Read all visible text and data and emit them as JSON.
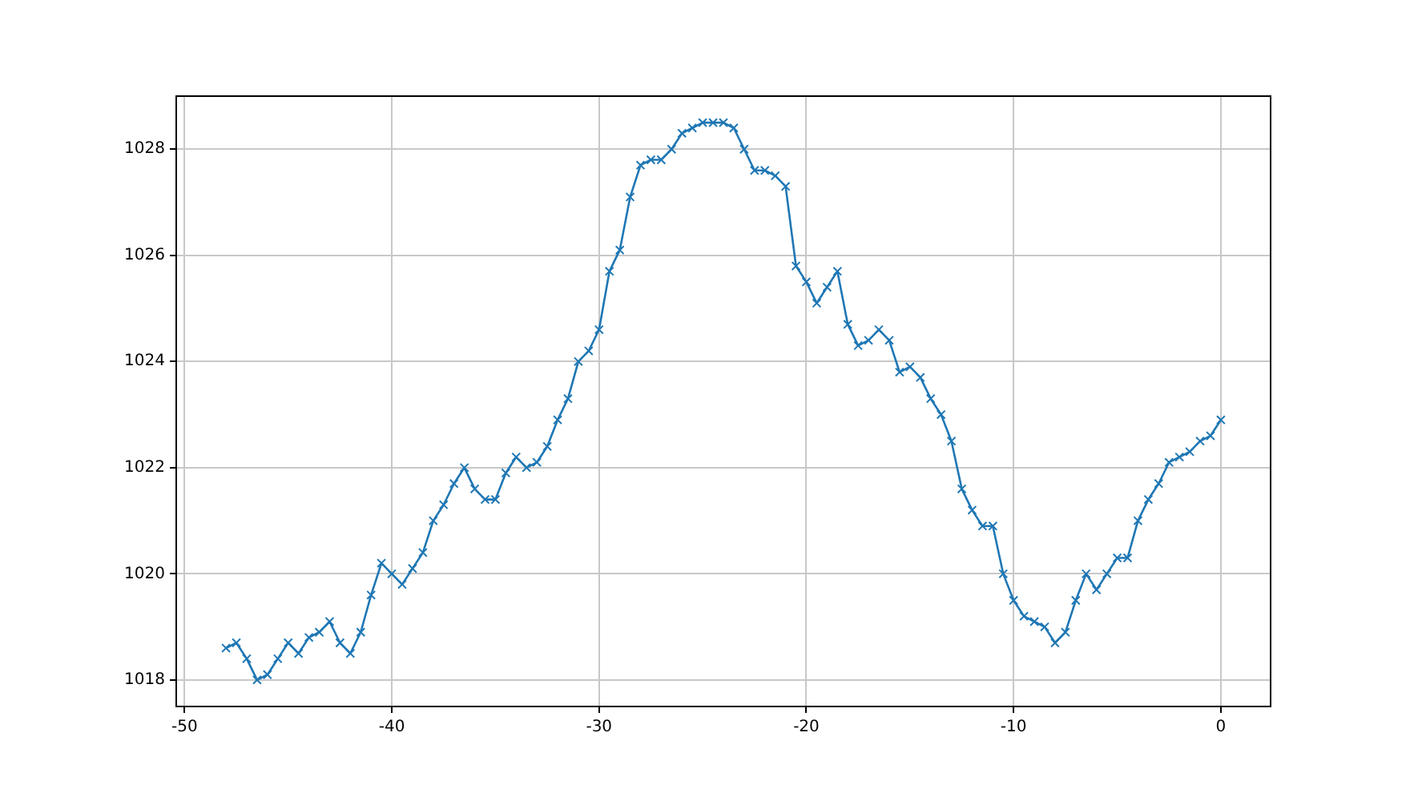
{
  "chart_data": {
    "type": "line",
    "x": [
      -48,
      -47.5,
      -47,
      -46.5,
      -46,
      -45.5,
      -45,
      -44.5,
      -44,
      -43.5,
      -43,
      -42.5,
      -42,
      -41.5,
      -41,
      -40.5,
      -40,
      -39.5,
      -39,
      -38.5,
      -38,
      -37.5,
      -37,
      -36.5,
      -36,
      -35.5,
      -35,
      -34.5,
      -34,
      -33.5,
      -33,
      -32.5,
      -32,
      -31.5,
      -31,
      -30.5,
      -30,
      -29.5,
      -29,
      -28.5,
      -28,
      -27.5,
      -27,
      -26.5,
      -26,
      -25.5,
      -25,
      -24.5,
      -24,
      -23.5,
      -23,
      -22.5,
      -22,
      -21.5,
      -21,
      -20.5,
      -20,
      -19.5,
      -19,
      -18.5,
      -18,
      -17.5,
      -17,
      -16.5,
      -16,
      -15.5,
      -15,
      -14.5,
      -14,
      -13.5,
      -13,
      -12.5,
      -12,
      -11.5,
      -11,
      -10.5,
      -10,
      -9.5,
      -9,
      -8.5,
      -8,
      -7.5,
      -7,
      -6.5,
      -6,
      -5.5,
      -5,
      -4.5,
      -4,
      -3.5,
      -3,
      -2.5,
      -2,
      -1.5,
      -1,
      -0.5,
      0
    ],
    "series": [
      {
        "color": "#1f77b4",
        "values": [
          1018.6,
          1018.7,
          1018.4,
          1018.0,
          1018.1,
          1018.4,
          1018.7,
          1018.5,
          1018.8,
          1018.9,
          1019.1,
          1018.7,
          1018.5,
          1018.9,
          1019.6,
          1020.2,
          1020.0,
          1019.8,
          1020.1,
          1020.4,
          1021.0,
          1021.3,
          1021.7,
          1022.0,
          1021.6,
          1021.4,
          1021.4,
          1021.9,
          1022.2,
          1022.0,
          1022.1,
          1022.4,
          1022.9,
          1023.3,
          1024.0,
          1024.2,
          1024.6,
          1025.7,
          1026.1,
          1027.1,
          1027.7,
          1027.8,
          1027.8,
          1028.0,
          1028.3,
          1028.4,
          1028.5,
          1028.5,
          1028.5,
          1028.4,
          1028.0,
          1027.6,
          1027.6,
          1027.5,
          1027.3,
          1025.8,
          1025.5,
          1025.1,
          1025.4,
          1025.7,
          1024.7,
          1024.3,
          1024.4,
          1024.6,
          1024.4,
          1023.8,
          1023.9,
          1023.7,
          1023.3,
          1023.0,
          1022.5,
          1021.6,
          1021.2,
          1020.9,
          1020.9,
          1020.0,
          1019.5,
          1019.2,
          1019.1,
          1019.0,
          1018.7,
          1018.9,
          1019.5,
          1020.0,
          1019.7,
          1020.0,
          1020.3,
          1020.3,
          1021.0,
          1021.4,
          1021.7,
          1022.1,
          1022.2,
          1022.3,
          1022.5,
          1022.6,
          1022.9
        ]
      }
    ],
    "xlim": [
      -50.4,
      2.4
    ],
    "xticks": [
      -50,
      -40,
      -30,
      -20,
      -10,
      0
    ],
    "ylim": [
      1017.5,
      1029.0
    ],
    "yticks": [
      1018,
      1020,
      1022,
      1024,
      1026,
      1028
    ],
    "grid": true,
    "marker": "cross",
    "line_style": "solid"
  }
}
